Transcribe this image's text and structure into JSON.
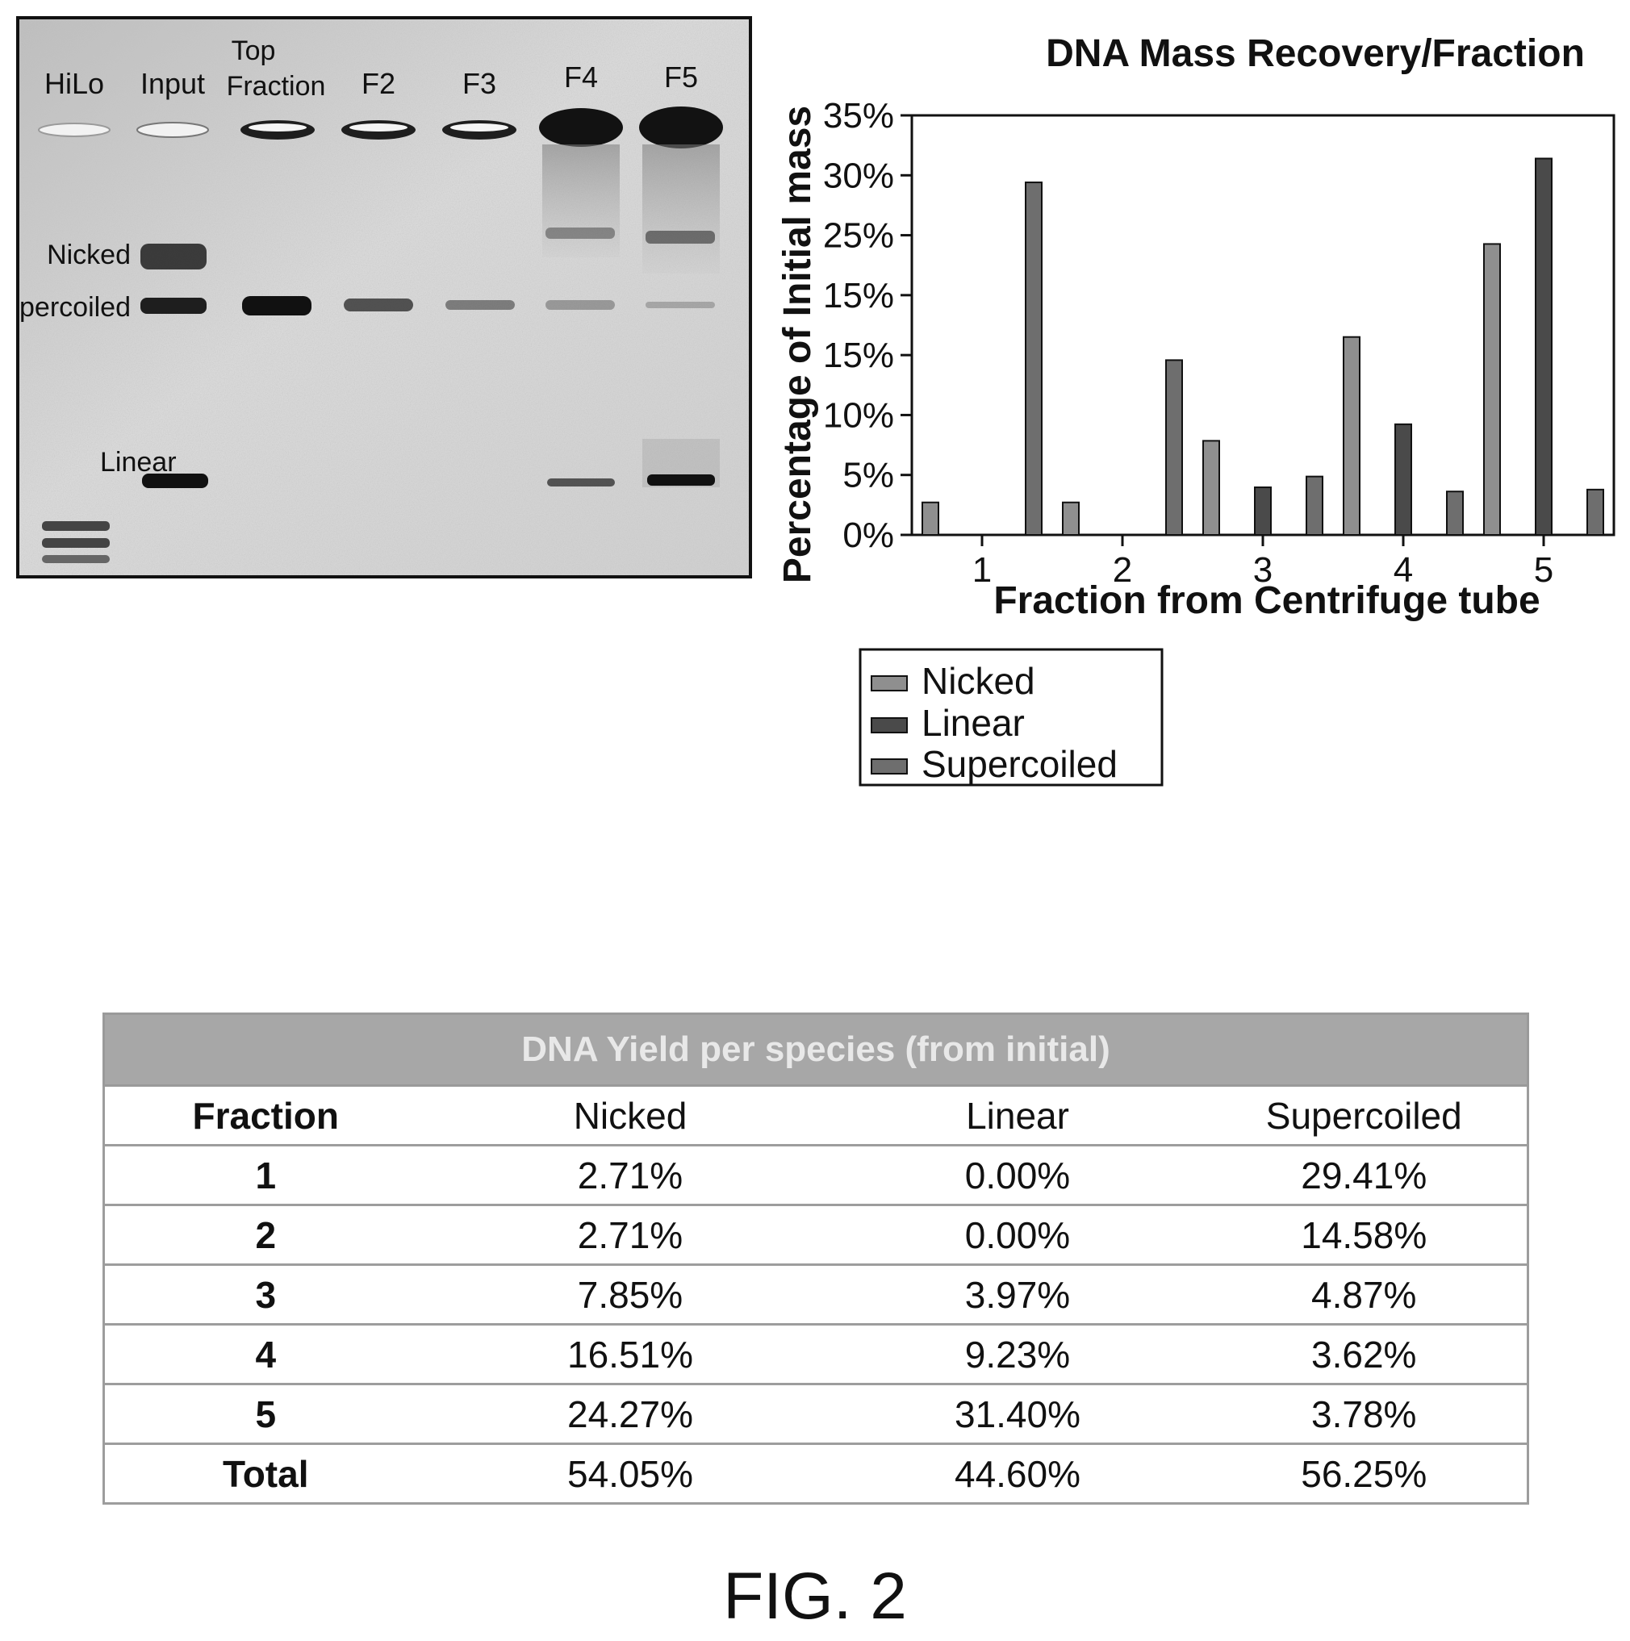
{
  "gel": {
    "lanes": [
      "HiLo",
      "Input",
      "Top",
      "Fraction",
      "F2",
      "F3",
      "F4",
      "F5"
    ],
    "band_labels": [
      "Nicked",
      "Supercoiled",
      "Linear"
    ]
  },
  "chart_data": {
    "type": "bar",
    "title": "DNA Mass Recovery/Fraction",
    "xlabel": "Fraction from Centrifuge tube",
    "ylabel": "Percentage of Initial mass",
    "categories": [
      "1",
      "2",
      "3",
      "4",
      "5"
    ],
    "ylim": [
      0,
      35
    ],
    "yticks": [
      "0%",
      "5%",
      "10%",
      "15%",
      "15%",
      "25%",
      "30%",
      "35%"
    ],
    "series": [
      {
        "name": "Nicked",
        "color": "#8f8f8f",
        "values": [
          2.71,
          2.71,
          7.85,
          16.51,
          24.27
        ]
      },
      {
        "name": "Linear",
        "color": "#4a4a4a",
        "values": [
          0.0,
          0.0,
          3.97,
          9.23,
          31.4
        ]
      },
      {
        "name": "Supercoiled",
        "color": "#6e6e6e",
        "values": [
          29.41,
          14.58,
          4.87,
          3.62,
          3.78
        ]
      }
    ],
    "legend": "below-right"
  },
  "table": {
    "title": "DNA Yield per species (from initial)",
    "headers": [
      "Fraction",
      "Nicked",
      "Linear",
      "Supercoiled"
    ],
    "rows": [
      [
        "1",
        "2.71%",
        "0.00%",
        "29.41%"
      ],
      [
        "2",
        "2.71%",
        "0.00%",
        "14.58%"
      ],
      [
        "3",
        "7.85%",
        "3.97%",
        "4.87%"
      ],
      [
        "4",
        "16.51%",
        "9.23%",
        "3.62%"
      ],
      [
        "5",
        "24.27%",
        "31.40%",
        "3.78%"
      ],
      [
        "Total",
        "54.05%",
        "44.60%",
        "56.25%"
      ]
    ]
  },
  "figure_label": "FIG. 2"
}
